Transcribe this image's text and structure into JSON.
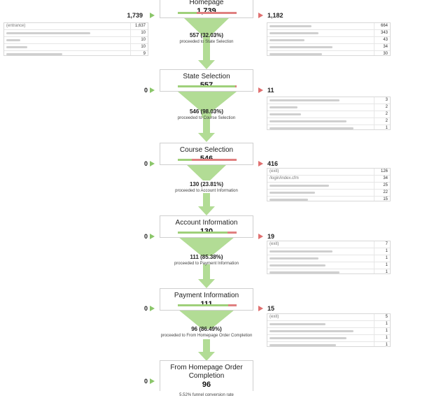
{
  "stages": [
    {
      "title": "Homepage",
      "count": "1,739",
      "entries": "1,739",
      "exits": "1,182",
      "fill": 0.32,
      "proceed": {
        "main": "557 (32.03%)",
        "sub": "proceeded to State Selection"
      }
    },
    {
      "title": "State Selection",
      "count": "557",
      "entries": "0",
      "exits": "11",
      "fill": 0.98,
      "proceed": {
        "main": "546 (98.03%)",
        "sub": "proceeded to Course Selection"
      }
    },
    {
      "title": "Course Selection",
      "count": "546",
      "entries": "0",
      "exits": "416",
      "fill": 0.24,
      "proceed": {
        "main": "130 (23.81%)",
        "sub": "proceeded to Account Information"
      }
    },
    {
      "title": "Account Information",
      "count": "130",
      "entries": "0",
      "exits": "19",
      "fill": 0.85,
      "proceed": {
        "main": "111 (85.38%)",
        "sub": "proceeded to Payment Information"
      }
    },
    {
      "title": "Payment Information",
      "count": "111",
      "entries": "0",
      "exits": "15",
      "fill": 0.86,
      "proceed": {
        "main": "96 (86.49%)",
        "sub": "proceeded to From Homepage Order Completion"
      }
    },
    {
      "title": "From Homepage Order Completion",
      "count": "96",
      "entries": "0",
      "conversion": "5.52% funnel conversion rate"
    }
  ],
  "entrance_table": {
    "rows": [
      {
        "label": "(entrance)",
        "value": "1,637"
      },
      {
        "label": "",
        "value": "10"
      },
      {
        "label": "",
        "value": "10"
      },
      {
        "label": "",
        "value": "10"
      },
      {
        "label": "",
        "value": "9"
      }
    ]
  },
  "exit_tables": [
    {
      "rows": [
        {
          "label": "",
          "value": "664"
        },
        {
          "label": "",
          "value": "343"
        },
        {
          "label": "",
          "value": "43"
        },
        {
          "label": "",
          "value": "34"
        },
        {
          "label": "",
          "value": "30"
        }
      ]
    },
    {
      "rows": [
        {
          "label": "",
          "value": "3"
        },
        {
          "label": "",
          "value": "2"
        },
        {
          "label": "",
          "value": "2"
        },
        {
          "label": "",
          "value": "2"
        },
        {
          "label": "",
          "value": "1"
        }
      ]
    },
    {
      "rows": [
        {
          "label": "(exit)",
          "value": "126"
        },
        {
          "label": "/login/index.cfm",
          "value": "34"
        },
        {
          "label": "",
          "value": "25"
        },
        {
          "label": "",
          "value": "22"
        },
        {
          "label": "",
          "value": "15"
        }
      ]
    },
    {
      "rows": [
        {
          "label": "(exit)",
          "value": "7"
        },
        {
          "label": "",
          "value": "1"
        },
        {
          "label": "",
          "value": "1"
        },
        {
          "label": "",
          "value": "1"
        },
        {
          "label": "",
          "value": "1"
        }
      ]
    },
    {
      "rows": [
        {
          "label": "(exit)",
          "value": "5"
        },
        {
          "label": "",
          "value": "1"
        },
        {
          "label": "",
          "value": "1"
        },
        {
          "label": "",
          "value": "1"
        },
        {
          "label": "",
          "value": "1"
        }
      ]
    }
  ],
  "colors": {
    "proceed_green": "#8bc66a",
    "exit_red": "#e07070",
    "funnel_green": "#b2dc95"
  }
}
